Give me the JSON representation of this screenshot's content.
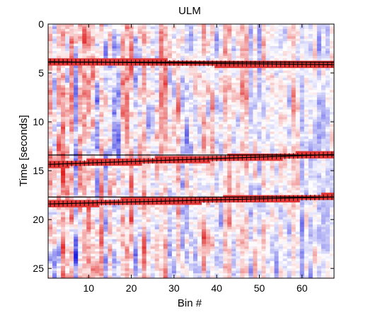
{
  "chart_data": {
    "type": "heatmap",
    "title": "ULM",
    "xlabel": "Bin #",
    "ylabel": "Time [seconds]",
    "xlim": [
      1,
      67
    ],
    "ylim": [
      26,
      0
    ],
    "x_ticks": [
      10,
      20,
      30,
      40,
      50,
      60
    ],
    "y_ticks": [
      0,
      5,
      10,
      15,
      20,
      25
    ],
    "colormap": {
      "negative": "#2020e0",
      "zero": "#ffffff",
      "positive": "#e02020"
    },
    "n_bins": 67,
    "panel_boundaries_seconds": [
      3.9,
      13.4,
      17.7
    ],
    "picked_arrival_curves": [
      {
        "start_time": 3.85,
        "end_time": 4.15
      },
      {
        "start_time": 14.35,
        "end_time": 13.35
      },
      {
        "start_time": 18.4,
        "end_time": 17.7
      }
    ],
    "grid": false
  },
  "icons": {
    "tick_mark": "plus-tick-icon"
  }
}
